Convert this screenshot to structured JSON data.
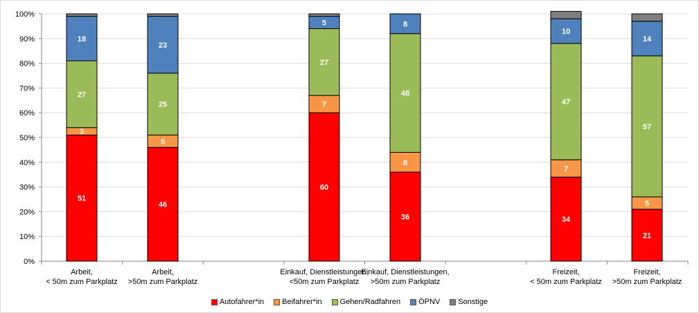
{
  "chart_data": {
    "type": "bar",
    "stacked": true,
    "categories": [
      [
        "Arbeit,",
        "< 50m zum Parkplatz"
      ],
      [
        "Arbeit,",
        ">50m zum Parkplatz"
      ],
      [
        "Einkauf, Dienstleistungen,",
        "<50m zum Parkplatz"
      ],
      [
        "Einkauf, Dienstleistungen,",
        ">50m zum Parkplatz"
      ],
      [
        "Freizeit,",
        "< 50m zum Parkplatz"
      ],
      [
        "Freizeit,",
        ">50m zum Parkplatz"
      ]
    ],
    "series": [
      {
        "name": "Autofahrer*in",
        "color": "#ff0000",
        "values": [
          51,
          46,
          60,
          36,
          34,
          21
        ]
      },
      {
        "name": "Beifahrer*in",
        "color": "#f79646",
        "values": [
          3,
          5,
          7,
          8,
          7,
          5
        ]
      },
      {
        "name": "Gehen/Radfahren",
        "color": "#9bbb59",
        "values": [
          27,
          25,
          27,
          48,
          47,
          57
        ]
      },
      {
        "name": "ÖPNV",
        "color": "#4f81bd",
        "values": [
          18,
          23,
          5,
          8,
          10,
          14
        ]
      },
      {
        "name": "Sonstige",
        "color": "#7f7f7f",
        "values": [
          1,
          1,
          1,
          0,
          3,
          3
        ]
      }
    ],
    "data_labels_shown": [
      [
        true,
        true,
        true,
        true,
        false
      ],
      [
        true,
        true,
        true,
        true,
        false
      ],
      [
        true,
        true,
        true,
        true,
        false
      ],
      [
        true,
        true,
        true,
        true,
        false
      ],
      [
        true,
        true,
        true,
        true,
        false
      ],
      [
        true,
        true,
        true,
        true,
        false
      ]
    ],
    "y_ticks": [
      "0%",
      "10%",
      "20%",
      "30%",
      "40%",
      "50%",
      "60%",
      "70%",
      "80%",
      "90%",
      "100%"
    ],
    "ylim": [
      0,
      100
    ],
    "title": "",
    "xlabel": "",
    "ylabel": "",
    "grid": true,
    "legend_position": "bottom"
  }
}
